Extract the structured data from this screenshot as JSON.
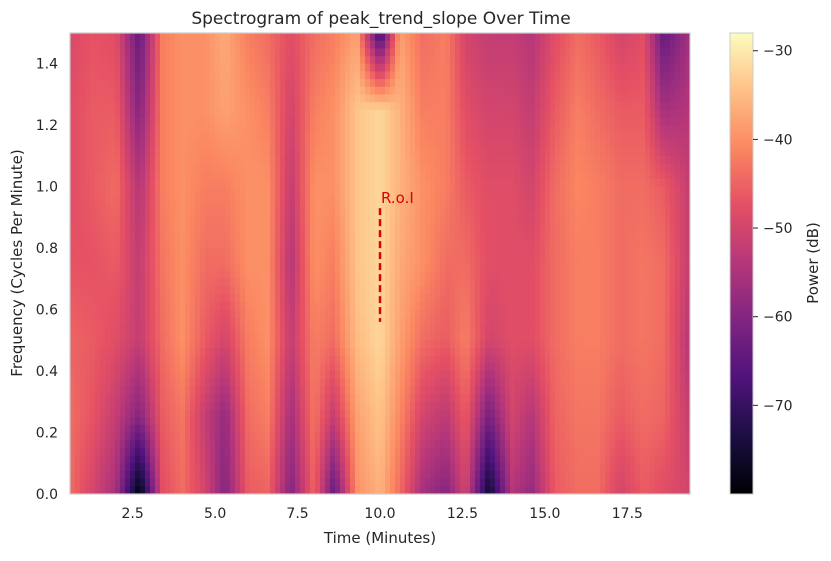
{
  "chart_data": {
    "type": "heatmap",
    "title": "Spectrogram of peak_trend_slope Over Time",
    "xlabel": "Time (Minutes)",
    "ylabel": "Frequency (Cycles Per Minute)",
    "colorbar_label": "Power (dB)",
    "colormap": "magma",
    "xlim": [
      0.6,
      19.4
    ],
    "ylim": [
      0,
      1.5
    ],
    "clim": [
      -80,
      -28
    ],
    "x_ticks": [
      2.5,
      5.0,
      7.5,
      10.0,
      12.5,
      15.0,
      17.5
    ],
    "x_tick_labels": [
      "2.5",
      "5.0",
      "7.5",
      "10.0",
      "12.5",
      "15.0",
      "17.5"
    ],
    "y_ticks": [
      0.0,
      0.2,
      0.4,
      0.6,
      0.8,
      1.0,
      1.2,
      1.4
    ],
    "y_tick_labels": [
      "0.0",
      "0.2",
      "0.4",
      "0.6",
      "0.8",
      "1.0",
      "1.2",
      "1.4"
    ],
    "colorbar_ticks": [
      -30,
      -40,
      -50,
      -60,
      -70
    ],
    "colorbar_tick_labels": [
      "−30",
      "−40",
      "−50",
      "−60",
      "−70"
    ],
    "time_columns": [
      0.6,
      1.3,
      2.0,
      2.7,
      3.4,
      4.0,
      4.7,
      5.3,
      6.0,
      6.6,
      7.3,
      8.0,
      8.6,
      9.3,
      10.0,
      10.6,
      11.3,
      12.0,
      12.6,
      13.3,
      14.0,
      14.6,
      15.3,
      16.0,
      16.6,
      17.3,
      18.0,
      18.6,
      19.4
    ],
    "freq_rows": [
      0.0,
      0.25,
      0.5,
      0.75,
      1.0,
      1.25,
      1.5
    ],
    "power_db": [
      [
        -44,
        -50,
        -56,
        -80,
        -48,
        -44,
        -50,
        -60,
        -46,
        -45,
        -60,
        -45,
        -64,
        -40,
        -36,
        -44,
        -56,
        -60,
        -50,
        -76,
        -54,
        -58,
        -46,
        -44,
        -44,
        -50,
        -46,
        -48,
        -50
      ],
      [
        -44,
        -47,
        -52,
        -60,
        -46,
        -43,
        -52,
        -58,
        -44,
        -42,
        -56,
        -43,
        -52,
        -38,
        -34,
        -41,
        -50,
        -53,
        -46,
        -62,
        -50,
        -54,
        -45,
        -43,
        -43,
        -46,
        -44,
        -45,
        -52
      ],
      [
        -45,
        -46,
        -48,
        -52,
        -44,
        -40,
        -46,
        -50,
        -42,
        -40,
        -52,
        -42,
        -44,
        -35,
        -32,
        -38,
        -44,
        -46,
        -42,
        -50,
        -48,
        -48,
        -44,
        -42,
        -42,
        -44,
        -43,
        -44,
        -54
      ],
      [
        -47,
        -47,
        -46,
        -52,
        -43,
        -40,
        -44,
        -44,
        -40,
        -40,
        -54,
        -40,
        -42,
        -34,
        -32,
        -37,
        -40,
        -44,
        -44,
        -48,
        -48,
        -48,
        -44,
        -42,
        -42,
        -44,
        -43,
        -44,
        -52
      ],
      [
        -48,
        -46,
        -44,
        -54,
        -42,
        -40,
        -42,
        -42,
        -40,
        -40,
        -52,
        -40,
        -40,
        -34,
        -32,
        -36,
        -40,
        -42,
        -46,
        -48,
        -48,
        -50,
        -44,
        -41,
        -42,
        -44,
        -44,
        -46,
        -52
      ],
      [
        -48,
        -46,
        -46,
        -60,
        -42,
        -40,
        -40,
        -38,
        -40,
        -42,
        -50,
        -42,
        -40,
        -34,
        -32,
        -36,
        -42,
        -42,
        -48,
        -50,
        -50,
        -52,
        -46,
        -42,
        -44,
        -46,
        -46,
        -56,
        -54
      ],
      [
        -49,
        -47,
        -48,
        -64,
        -42,
        -40,
        -40,
        -37,
        -42,
        -44,
        -48,
        -44,
        -42,
        -38,
        -70,
        -38,
        -44,
        -42,
        -50,
        -52,
        -52,
        -54,
        -48,
        -44,
        -46,
        -50,
        -48,
        -64,
        -56
      ]
    ],
    "annotation": {
      "text": "R.o.I",
      "x": 10.0,
      "y_start": 0.56,
      "y_end": 0.93,
      "color": "#e00000"
    }
  }
}
